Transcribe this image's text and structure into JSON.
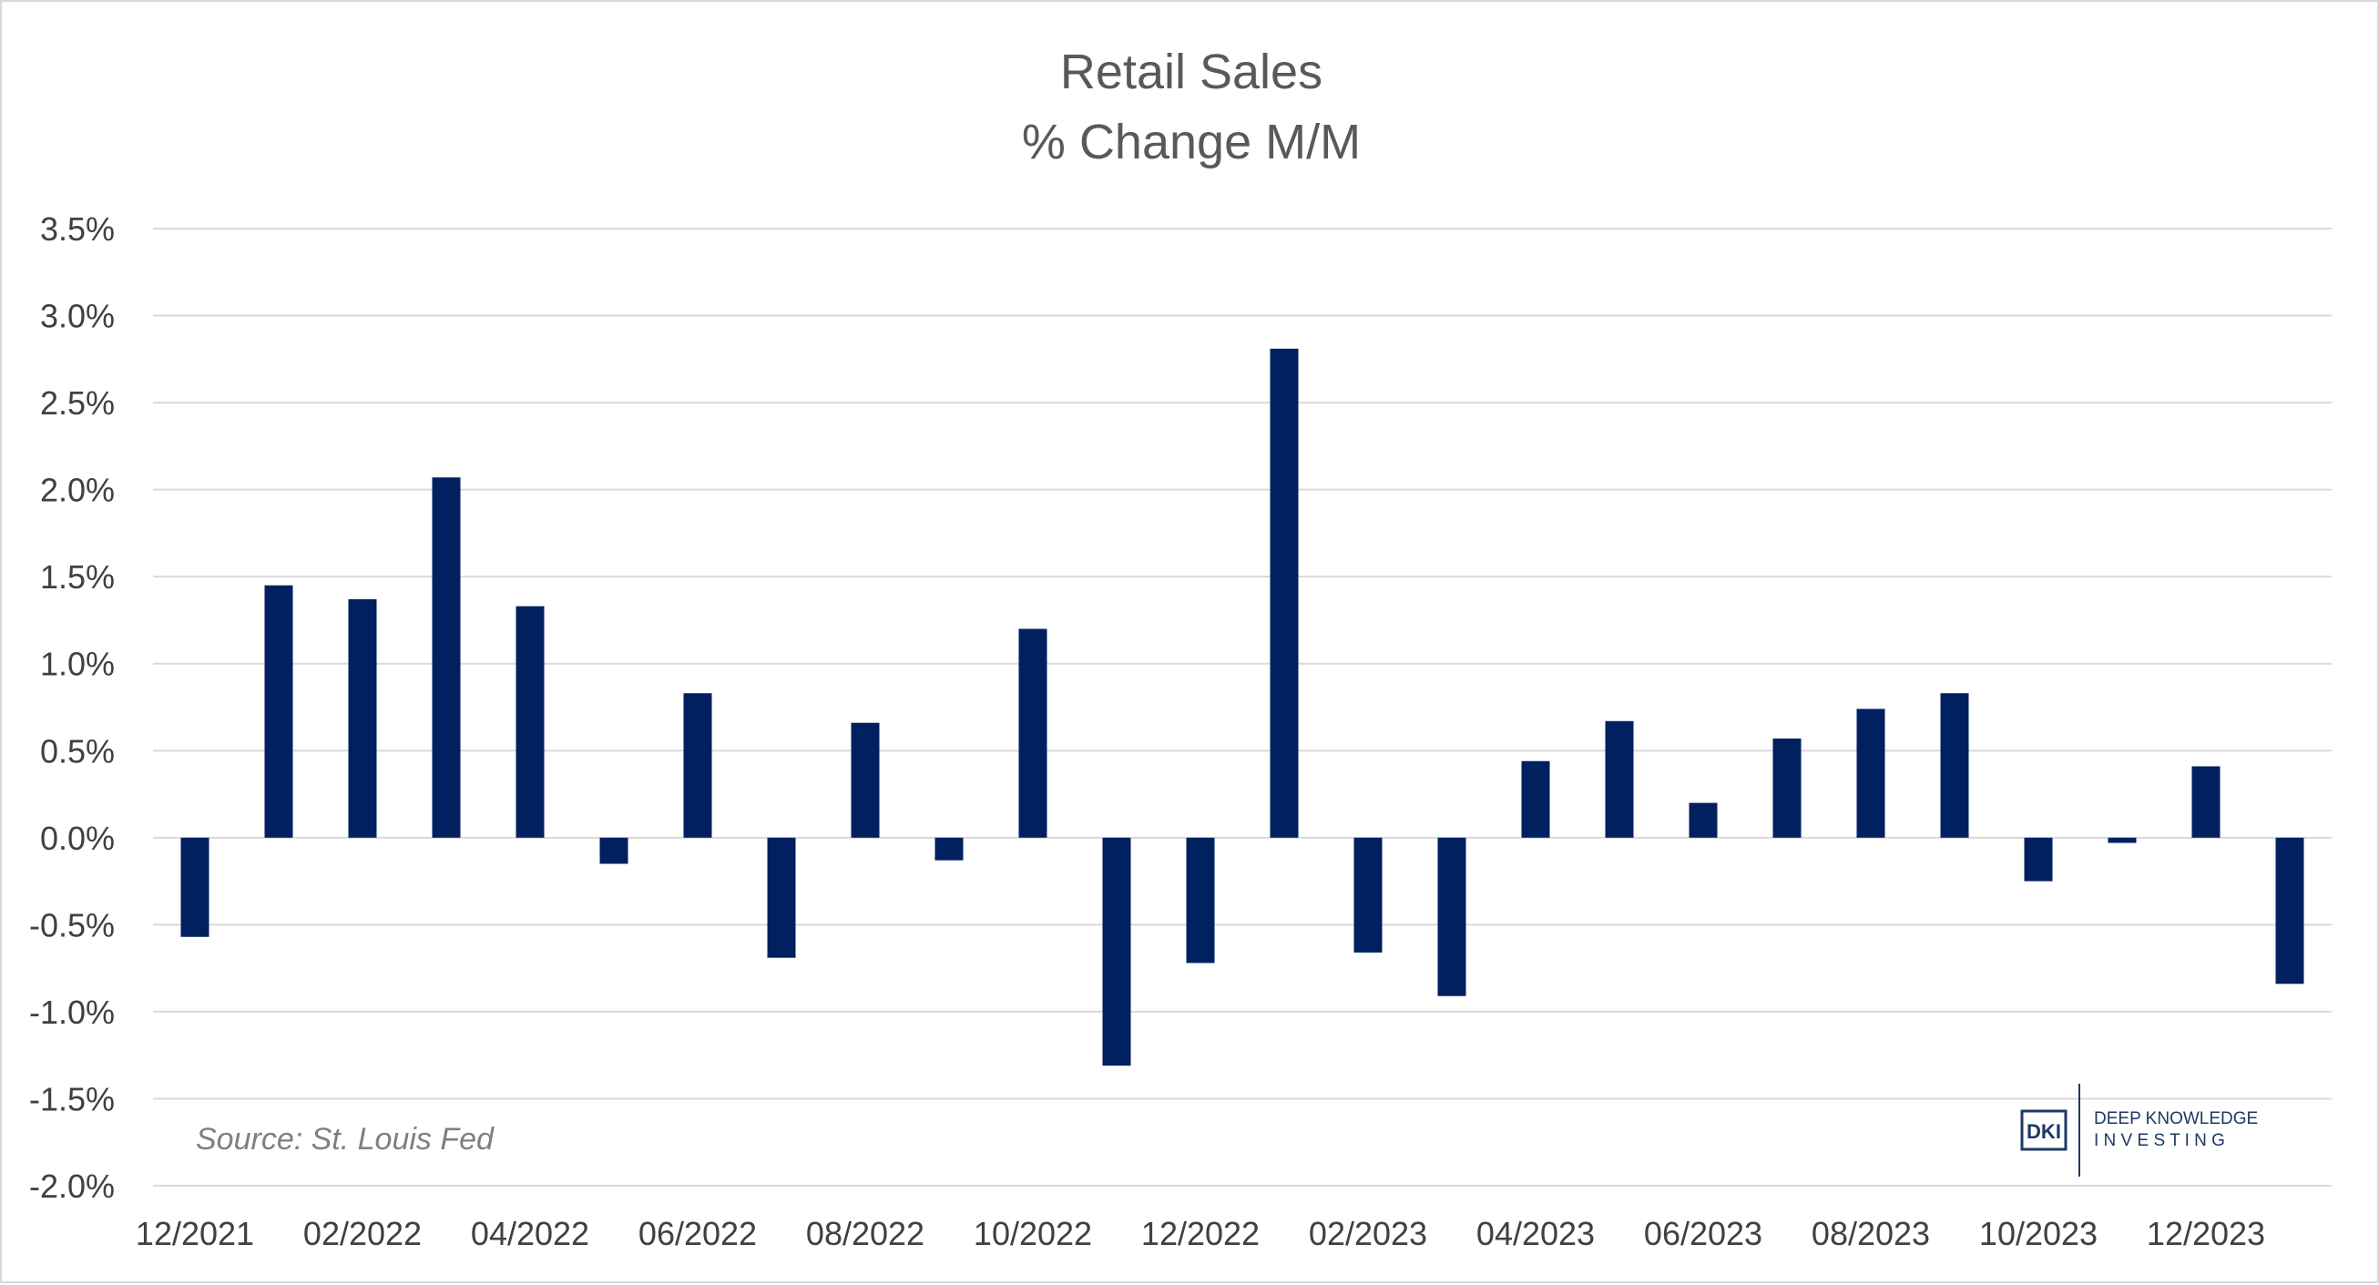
{
  "chart_data": {
    "type": "bar",
    "title": "Retail Sales",
    "subtitle": "% Change M/M",
    "xlabel": "",
    "ylabel": "",
    "ylim": [
      -2.0,
      3.5
    ],
    "yticks": [
      "3.5%",
      "3.0%",
      "2.5%",
      "2.0%",
      "1.5%",
      "1.0%",
      "0.5%",
      "0.0%",
      "-0.5%",
      "-1.0%",
      "-1.5%",
      "-2.0%"
    ],
    "ytick_values": [
      3.5,
      3.0,
      2.5,
      2.0,
      1.5,
      1.0,
      0.5,
      0.0,
      -0.5,
      -1.0,
      -1.5,
      -2.0
    ],
    "grid": true,
    "legend": "none",
    "bar_color": "#002060",
    "categories": [
      "12/2021",
      "01/2022",
      "02/2022",
      "03/2022",
      "04/2022",
      "05/2022",
      "06/2022",
      "07/2022",
      "08/2022",
      "09/2022",
      "10/2022",
      "11/2022",
      "12/2022",
      "01/2023",
      "02/2023",
      "03/2023",
      "04/2023",
      "05/2023",
      "06/2023",
      "07/2023",
      "08/2023",
      "09/2023",
      "10/2023",
      "11/2023",
      "12/2023",
      "01/2024"
    ],
    "x_tick_labels": [
      "12/2021",
      "",
      "02/2022",
      "",
      "04/2022",
      "",
      "06/2022",
      "",
      "08/2022",
      "",
      "10/2022",
      "",
      "12/2022",
      "",
      "02/2023",
      "",
      "04/2023",
      "",
      "06/2023",
      "",
      "08/2023",
      "",
      "10/2023",
      "",
      "12/2023",
      ""
    ],
    "values": [
      -0.57,
      1.45,
      1.37,
      2.07,
      1.33,
      -0.15,
      0.83,
      -0.69,
      0.66,
      -0.13,
      1.2,
      -1.31,
      -0.72,
      2.81,
      -0.66,
      -0.91,
      0.44,
      0.67,
      0.2,
      0.57,
      0.74,
      0.83,
      -0.25,
      -0.03,
      0.41,
      -0.84
    ],
    "annotations": [
      "Source: St. Louis Fed"
    ]
  },
  "logo": {
    "mark": "DKI",
    "line1": "DEEP KNOWLEDGE",
    "line2": "I N V E S T I N G"
  },
  "colors": {
    "bar": "#002060",
    "grid": "#d9d9d9",
    "title": "#595959",
    "tick": "#404040",
    "source": "#7f7f7f",
    "logo": "#1f3864"
  }
}
